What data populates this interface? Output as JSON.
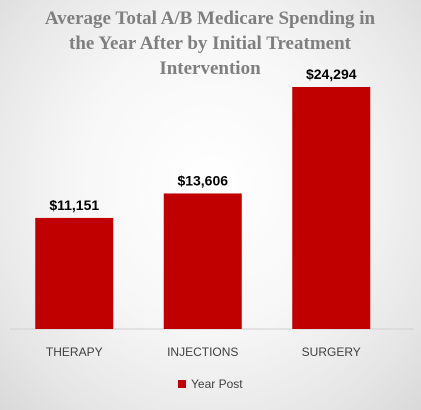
{
  "chart_data": {
    "type": "bar",
    "title_lines": [
      "Average Total A/B  Medicare Spending in",
      "the Year After by Initial Treatment",
      "Intervention"
    ],
    "categories": [
      "THERAPY",
      "INJECTIONS",
      "SURGERY"
    ],
    "series": [
      {
        "name": "Year Post",
        "values": [
          11151,
          13606,
          24294
        ],
        "labels": [
          "$11,151",
          "$13,606",
          "$24,294"
        ],
        "color": "#c00000"
      }
    ],
    "ylim": [
      0,
      26000
    ],
    "grid": false,
    "legend_position": "bottom"
  }
}
